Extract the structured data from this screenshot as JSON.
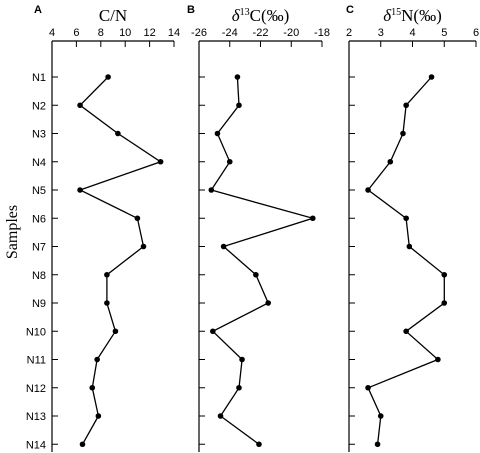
{
  "chart_data": [
    {
      "type": "line",
      "panel": "A",
      "title": "C/N",
      "ylabel": "Samples",
      "categories": [
        "N1",
        "N2",
        "N3",
        "N4",
        "N5",
        "N6",
        "N7",
        "N8",
        "N9",
        "N10",
        "N11",
        "N12",
        "N13",
        "N14"
      ],
      "values": [
        8.6,
        6.3,
        9.4,
        12.9,
        6.3,
        11.0,
        11.5,
        8.5,
        8.5,
        9.2,
        7.7,
        7.3,
        7.8,
        6.5
      ],
      "xlim": [
        4,
        14
      ],
      "xticks": [
        "4",
        "6",
        "8",
        "10",
        "12",
        "14"
      ],
      "xaxis_position": "top"
    },
    {
      "type": "line",
      "panel": "B",
      "title": "δ13C(‰)",
      "title_parts": {
        "delta": "δ",
        "sup": "13",
        "rest": "C(‰)"
      },
      "categories": [
        "N1",
        "N2",
        "N3",
        "N4",
        "N5",
        "N6",
        "N7",
        "N8",
        "N9",
        "N10",
        "N11",
        "N12",
        "N13",
        "N14"
      ],
      "values": [
        -23.5,
        -23.4,
        -24.8,
        -24.0,
        -25.2,
        -18.6,
        -24.4,
        -22.3,
        -21.5,
        -25.1,
        -23.2,
        -23.4,
        -24.6,
        -22.1
      ],
      "xlim": [
        -26,
        -18
      ],
      "xticks": [
        "-26",
        "-24",
        "-22",
        "-20",
        "-18"
      ],
      "xaxis_position": "top"
    },
    {
      "type": "line",
      "panel": "C",
      "title": "δ15N(‰)",
      "title_parts": {
        "delta": "δ",
        "sup": "15",
        "rest": "N(‰)"
      },
      "categories": [
        "N1",
        "N2",
        "N3",
        "N4",
        "N5",
        "N6",
        "N7",
        "N8",
        "N9",
        "N10",
        "N11",
        "N12",
        "N13",
        "N14"
      ],
      "values": [
        4.6,
        3.8,
        3.7,
        3.3,
        2.6,
        3.8,
        3.9,
        5.0,
        5.0,
        3.8,
        4.8,
        2.6,
        3.0,
        2.9
      ],
      "xlim": [
        2,
        6
      ],
      "xticks": [
        "2",
        "3",
        "4",
        "5",
        "6"
      ],
      "xaxis_position": "top"
    }
  ]
}
